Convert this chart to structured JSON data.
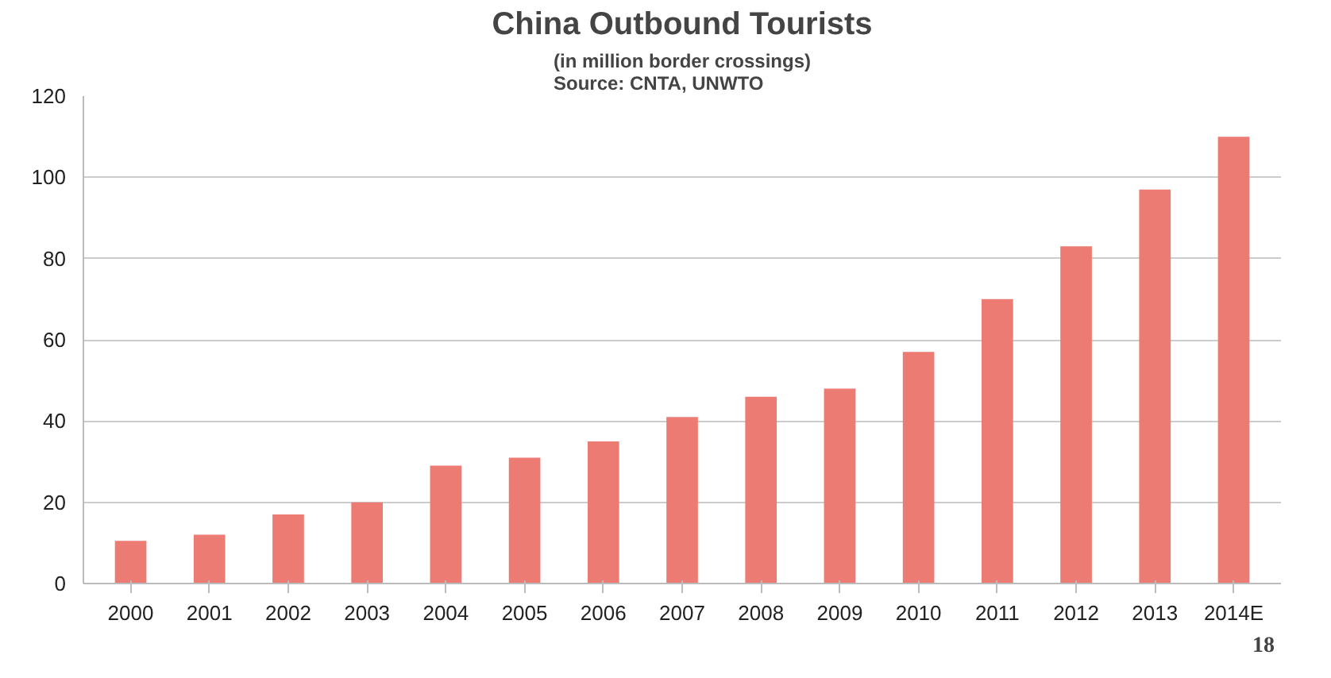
{
  "chart_data": {
    "type": "bar",
    "title": "China Outbound Tourists",
    "subtitle": "(in million border crossings)\nSource: CNTA, UNWTO",
    "categories": [
      "2000",
      "2001",
      "2002",
      "2003",
      "2004",
      "2005",
      "2006",
      "2007",
      "2008",
      "2009",
      "2010",
      "2011",
      "2012",
      "2013",
      "2014E"
    ],
    "values": [
      10.5,
      12,
      17,
      20,
      29,
      31,
      35,
      41,
      46,
      48,
      57,
      70,
      83,
      97,
      110
    ],
    "color": "#ec7b73",
    "ylim": [
      0,
      120
    ],
    "yticks": [
      0,
      20,
      40,
      60,
      80,
      100,
      120
    ],
    "grid": "y",
    "annotations": [
      "18"
    ]
  }
}
